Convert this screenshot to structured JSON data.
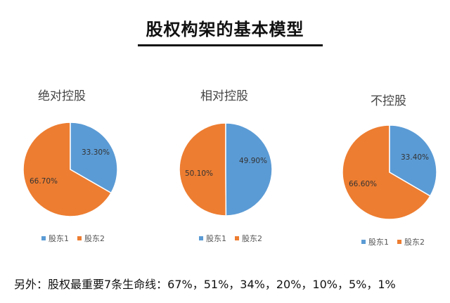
{
  "title": "股权构架的基本模型",
  "colors": {
    "shareholder1": "#5b9bd5",
    "shareholder2": "#ed7d31"
  },
  "legend": {
    "item1": "股东1",
    "item2": "股东2"
  },
  "footer": "另外：股权最重要7条生命线：67%，51%，34%，20%，10%，5%，1%",
  "charts": [
    {
      "title": "绝对控股",
      "s1_label": "33.30%",
      "s2_label": "66.70%"
    },
    {
      "title": "相对控股",
      "s1_label": "49.90%",
      "s2_label": "50.10%"
    },
    {
      "title": "不控股",
      "s1_label": "33.40%",
      "s2_label": "66.60%"
    }
  ],
  "chart_data": [
    {
      "type": "pie",
      "title": "绝对控股",
      "categories": [
        "股东1",
        "股东2"
      ],
      "values": [
        33.3,
        66.7
      ],
      "unit": "%",
      "legend_position": "bottom"
    },
    {
      "type": "pie",
      "title": "相对控股",
      "categories": [
        "股东1",
        "股东2"
      ],
      "values": [
        49.9,
        50.1
      ],
      "unit": "%",
      "legend_position": "bottom"
    },
    {
      "type": "pie",
      "title": "不控股",
      "categories": [
        "股东1",
        "股东2"
      ],
      "values": [
        33.4,
        66.6
      ],
      "unit": "%",
      "legend_position": "bottom"
    }
  ]
}
